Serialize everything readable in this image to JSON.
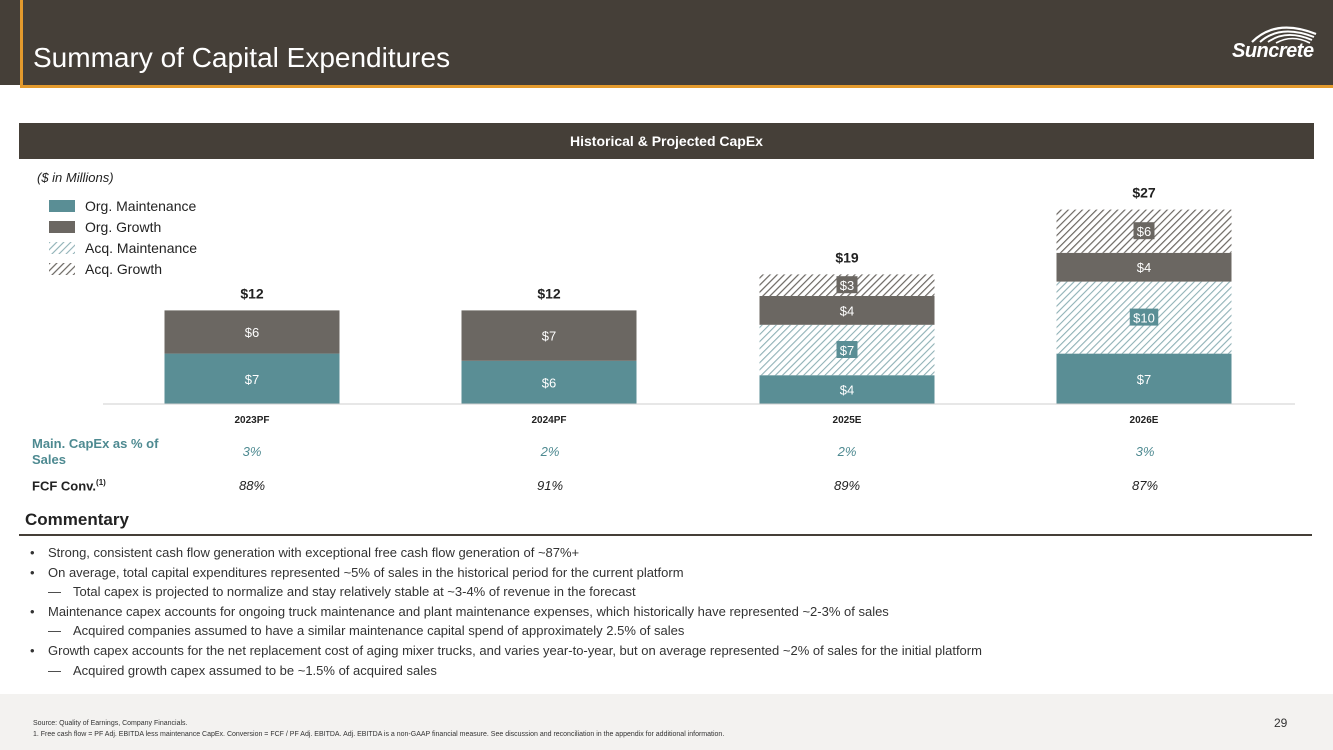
{
  "header": {
    "title": "Summary of Capital Expenditures",
    "logo_text": "Suncrete",
    "logo_icon": "suncrete-swoosh-icon"
  },
  "section": {
    "title": "Historical & Projected CapEx"
  },
  "colors": {
    "org_maintenance": "#5a8e95",
    "org_growth": "#6b6762",
    "acq_maintenance": "#9fbcc0",
    "acq_growth": "#7a7670",
    "band": "#453f38",
    "accent": "#e39a2d"
  },
  "chart_data": {
    "type": "bar",
    "stacked": true,
    "units_label": "($ in Millions)",
    "categories": [
      "2023PF",
      "2024PF",
      "2025E",
      "2026E"
    ],
    "series": [
      {
        "name": "Org. Maintenance",
        "values": [
          7,
          6,
          4,
          7
        ],
        "labels": [
          "$7",
          "$6",
          "$4",
          "$7"
        ],
        "style": "solid"
      },
      {
        "name": "Acq. Maintenance",
        "values": [
          0,
          0,
          7,
          10
        ],
        "labels": [
          "",
          "",
          "$7",
          "$10"
        ],
        "style": "hatch-light"
      },
      {
        "name": "Org. Growth",
        "values": [
          6,
          7,
          4,
          4
        ],
        "labels": [
          "$6",
          "$7",
          "$4",
          "$4"
        ],
        "style": "solid"
      },
      {
        "name": "Acq. Growth",
        "values": [
          0,
          0,
          3,
          6
        ],
        "labels": [
          "",
          "",
          "$3",
          "$6"
        ],
        "style": "hatch-dark"
      }
    ],
    "totals": [
      "$12",
      "$12",
      "$19",
      "$27"
    ],
    "legend_order": [
      "Org. Maintenance",
      "Org. Growth",
      "Acq. Maintenance",
      "Acq. Growth"
    ],
    "ylim": [
      0,
      30
    ]
  },
  "metrics": {
    "maint_label": "Main. CapEx as % of Sales",
    "maint_values": [
      "3%",
      "2%",
      "2%",
      "3%"
    ],
    "fcf_label": "FCF Conv.",
    "fcf_sup": "(1)",
    "fcf_values": [
      "88%",
      "91%",
      "89%",
      "87%"
    ]
  },
  "commentary": {
    "title": "Commentary",
    "bullet_marker": "•",
    "sub_marker": "—",
    "items": [
      {
        "level": 1,
        "text": "Strong, consistent cash flow generation with exceptional free cash flow generation of ~87%+"
      },
      {
        "level": 1,
        "text": "On average, total capital expenditures represented ~5% of sales in the historical period for the current platform"
      },
      {
        "level": 2,
        "text": "Total capex is projected to normalize and stay relatively stable at ~3-4% of revenue in the forecast"
      },
      {
        "level": 1,
        "text": "Maintenance capex accounts for ongoing truck maintenance and plant maintenance expenses, which historically have represented ~2-3% of sales"
      },
      {
        "level": 2,
        "text": "Acquired companies assumed to have a similar maintenance capital spend of approximately 2.5% of sales"
      },
      {
        "level": 1,
        "text": "Growth capex accounts for the net replacement cost of aging mixer trucks, and varies year-to-year, but on average represented ~2% of sales for the initial platform"
      },
      {
        "level": 2,
        "text": "Acquired growth capex assumed to be ~1.5% of acquired sales"
      }
    ]
  },
  "footer": {
    "source": "Source: Quality of Earnings, Company Financials.",
    "note1": "1.      Free cash flow = PF Adj. EBITDA less maintenance CapEx. Conversion = FCF / PF Adj. EBITDA. Adj. EBITDA is a non-GAAP financial measure. See discussion and reconciliation in the appendix for additional information.",
    "page_number": "29"
  }
}
